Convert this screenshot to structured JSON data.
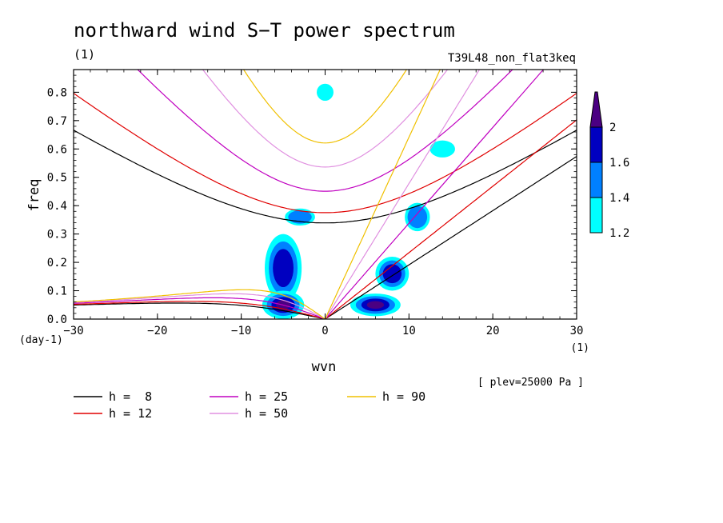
{
  "chart_data": {
    "type": "contour",
    "title": "northward wind S−T power spectrum",
    "subtitle_left": "(1)",
    "subtitle_right": "T39L48_non_flat3keq",
    "xlabel": "wvn",
    "ylabel": "freq",
    "x_unit": "(1)",
    "y_unit": "(day-1)",
    "level_note": "[ plev=25000 Pa ]",
    "xlim": [
      -30,
      30
    ],
    "ylim": [
      0,
      0.88
    ],
    "x_ticks": [
      -30,
      -20,
      -10,
      0,
      10,
      20,
      30
    ],
    "x_tick_labels": [
      "−30",
      "−20",
      "−10",
      "0",
      "10",
      "20",
      "30"
    ],
    "y_ticks": [
      0.0,
      0.1,
      0.2,
      0.3,
      0.4,
      0.5,
      0.6,
      0.7,
      0.8
    ],
    "y_tick_labels": [
      "0.0",
      "0.1",
      "0.2",
      "0.3",
      "0.4",
      "0.5",
      "0.6",
      "0.7",
      "0.8"
    ],
    "colorbar": {
      "levels": [
        1.2,
        1.4,
        1.6,
        2
      ],
      "labels": [
        "1.2",
        "1.4",
        "1.6",
        "2"
      ],
      "colors": [
        "#00ffff",
        "#0080ff",
        "#0000c0",
        "#4b0082"
      ]
    },
    "dispersion_curves": [
      {
        "name": "h =  8",
        "h": 8,
        "color": "#000000"
      },
      {
        "name": "h = 12",
        "h": 12,
        "color": "#e00000"
      },
      {
        "name": "h = 25",
        "h": 25,
        "color": "#c000c0"
      },
      {
        "name": "h = 50",
        "h": 50,
        "color": "#e090e0"
      },
      {
        "name": "h = 90",
        "h": 90,
        "color": "#f0c000"
      }
    ],
    "high_power_regions": [
      {
        "x": -5,
        "y": 0.18,
        "rx": 2.2,
        "ry": 0.12,
        "level": 1.6
      },
      {
        "x": -5,
        "y": 0.05,
        "rx": 2.5,
        "ry": 0.05,
        "level": 2
      },
      {
        "x": -3,
        "y": 0.36,
        "rx": 1.8,
        "ry": 0.03,
        "level": 1.4
      },
      {
        "x": 6,
        "y": 0.05,
        "rx": 3,
        "ry": 0.04,
        "level": 2
      },
      {
        "x": 8,
        "y": 0.16,
        "rx": 2,
        "ry": 0.06,
        "level": 1.6
      },
      {
        "x": 11,
        "y": 0.36,
        "rx": 1.5,
        "ry": 0.05,
        "level": 1.4
      },
      {
        "x": 14,
        "y": 0.6,
        "rx": 1.5,
        "ry": 0.03,
        "level": 1.2
      },
      {
        "x": 0,
        "y": 0.8,
        "rx": 1,
        "ry": 0.03,
        "level": 1.2
      }
    ]
  }
}
